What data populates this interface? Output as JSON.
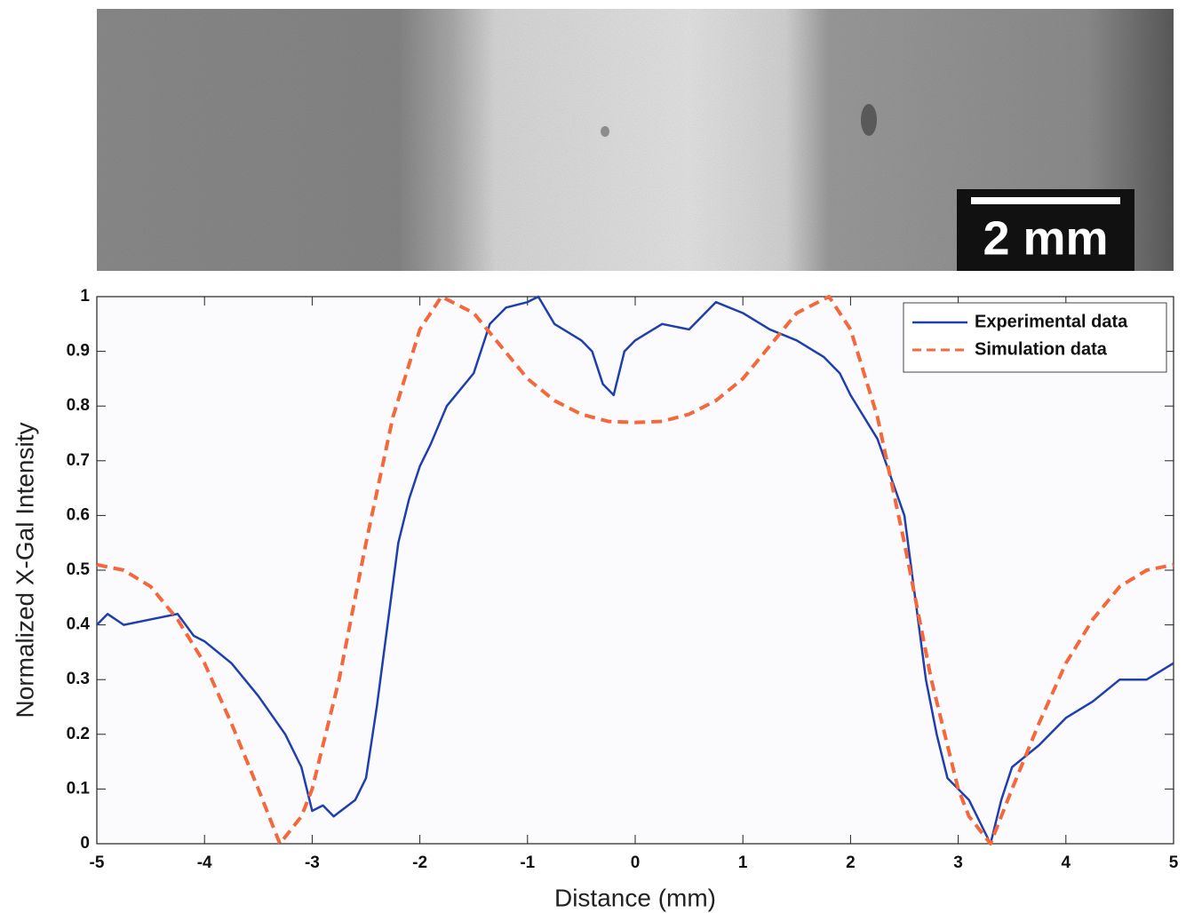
{
  "image": {
    "scale_bar_label": "2 mm"
  },
  "chart_data": {
    "type": "line",
    "xlabel": "Distance (mm)",
    "ylabel": "Normalized X-Gal Intensity",
    "xlim": [
      -5,
      5
    ],
    "ylim": [
      0,
      1
    ],
    "xticks": [
      -5,
      -4,
      -3,
      -2,
      -1,
      0,
      1,
      2,
      3,
      4,
      5
    ],
    "yticks": [
      0,
      0.1,
      0.2,
      0.3,
      0.4,
      0.5,
      0.6,
      0.7,
      0.8,
      0.9,
      1
    ],
    "legend": "upper right",
    "series": [
      {
        "name": "Experimental data",
        "color": "#1f3fae",
        "style": "solid",
        "x": [
          -5,
          -4.9,
          -4.75,
          -4.5,
          -4.25,
          -4.1,
          -4,
          -3.75,
          -3.5,
          -3.25,
          -3.1,
          -3.0,
          -2.9,
          -2.8,
          -2.6,
          -2.5,
          -2.4,
          -2.3,
          -2.2,
          -2.1,
          -2.0,
          -1.9,
          -1.75,
          -1.5,
          -1.35,
          -1.2,
          -1.0,
          -0.9,
          -0.75,
          -0.5,
          -0.4,
          -0.3,
          -0.2,
          -0.1,
          0,
          0.25,
          0.5,
          0.75,
          1.0,
          1.25,
          1.5,
          1.75,
          1.9,
          2.0,
          2.25,
          2.5,
          2.6,
          2.7,
          2.8,
          2.9,
          3.0,
          3.1,
          3.2,
          3.3,
          3.4,
          3.5,
          3.75,
          4.0,
          4.25,
          4.5,
          4.75,
          5.0
        ],
        "values": [
          0.4,
          0.42,
          0.4,
          0.41,
          0.42,
          0.38,
          0.37,
          0.33,
          0.27,
          0.2,
          0.14,
          0.06,
          0.07,
          0.05,
          0.08,
          0.12,
          0.25,
          0.4,
          0.55,
          0.63,
          0.69,
          0.73,
          0.8,
          0.86,
          0.95,
          0.98,
          0.99,
          1.0,
          0.95,
          0.92,
          0.9,
          0.84,
          0.82,
          0.9,
          0.92,
          0.95,
          0.94,
          0.99,
          0.97,
          0.94,
          0.92,
          0.89,
          0.86,
          0.82,
          0.74,
          0.6,
          0.45,
          0.3,
          0.2,
          0.12,
          0.1,
          0.08,
          0.04,
          0.0,
          0.08,
          0.14,
          0.18,
          0.23,
          0.26,
          0.3,
          0.3,
          0.33
        ]
      },
      {
        "name": "Simulation data",
        "color": "#f4683c",
        "style": "dashed",
        "x": [
          -5,
          -4.75,
          -4.5,
          -4.25,
          -4,
          -3.75,
          -3.5,
          -3.3,
          -3.1,
          -3,
          -2.75,
          -2.5,
          -2.25,
          -2,
          -1.8,
          -1.5,
          -1.25,
          -1,
          -0.75,
          -0.5,
          -0.25,
          0,
          0.25,
          0.5,
          0.75,
          1,
          1.25,
          1.5,
          1.8,
          2,
          2.25,
          2.5,
          2.75,
          3,
          3.1,
          3.3,
          3.5,
          3.75,
          4,
          4.25,
          4.5,
          4.75,
          5
        ],
        "values": [
          0.51,
          0.5,
          0.47,
          0.41,
          0.33,
          0.22,
          0.1,
          0.0,
          0.05,
          0.1,
          0.3,
          0.55,
          0.78,
          0.94,
          1.0,
          0.97,
          0.91,
          0.85,
          0.81,
          0.785,
          0.772,
          0.77,
          0.772,
          0.785,
          0.81,
          0.85,
          0.91,
          0.97,
          1.0,
          0.94,
          0.78,
          0.55,
          0.3,
          0.1,
          0.05,
          0.0,
          0.1,
          0.22,
          0.33,
          0.41,
          0.47,
          0.5,
          0.51
        ]
      }
    ]
  }
}
